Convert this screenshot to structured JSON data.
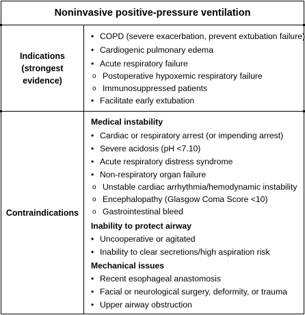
{
  "title": "Noninvasive positive-pressure ventilation",
  "indications": {
    "label_lines": [
      "Indications",
      "(strongest",
      "evidence)"
    ],
    "items": [
      {
        "text": "COPD (severe exacerbation, prevent extubation failure)",
        "level": 1
      },
      {
        "text": "Cardiogenic pulmonary edema",
        "level": 1
      },
      {
        "text": "Acute respiratory failure",
        "level": 1
      },
      {
        "text": "Postoperative hypoxemic respiratory failure",
        "level": 2
      },
      {
        "text": "Immunosuppressed patients",
        "level": 2
      },
      {
        "text": "Facilitate early extubation",
        "level": 1
      }
    ]
  },
  "contraindications": {
    "label": "Contraindications",
    "sections": [
      {
        "heading": "Medical instability",
        "items": [
          {
            "text": "Cardiac or respiratory arrest (or impending arrest)",
            "level": 1
          },
          {
            "text": "Severe acidosis (pH <7.10)",
            "level": 1
          },
          {
            "text": "Acute respiratory distress syndrome",
            "level": 1
          },
          {
            "text": "Non-respiratory organ failure",
            "level": 1
          },
          {
            "text": "Unstable cardiac arrhythmia/hemodynamic instability",
            "level": 2
          },
          {
            "text": "Encephalopathy (Glasgow Coma Score <10)",
            "level": 2
          },
          {
            "text": "Gastrointestinal bleed",
            "level": 2
          }
        ]
      },
      {
        "heading": "Inability to protect airway",
        "items": [
          {
            "text": "Uncooperative or agitated",
            "level": 1
          },
          {
            "text": "Inability to clear secretions/high aspiration risk",
            "level": 1
          }
        ]
      },
      {
        "heading": "Mechanical issues",
        "items": [
          {
            "text": "Recent esophageal anastomosis",
            "level": 1
          },
          {
            "text": "Facial or neurological surgery, deformity, or trauma",
            "level": 1
          },
          {
            "text": "Upper airway obstruction",
            "level": 1
          }
        ]
      }
    ]
  }
}
